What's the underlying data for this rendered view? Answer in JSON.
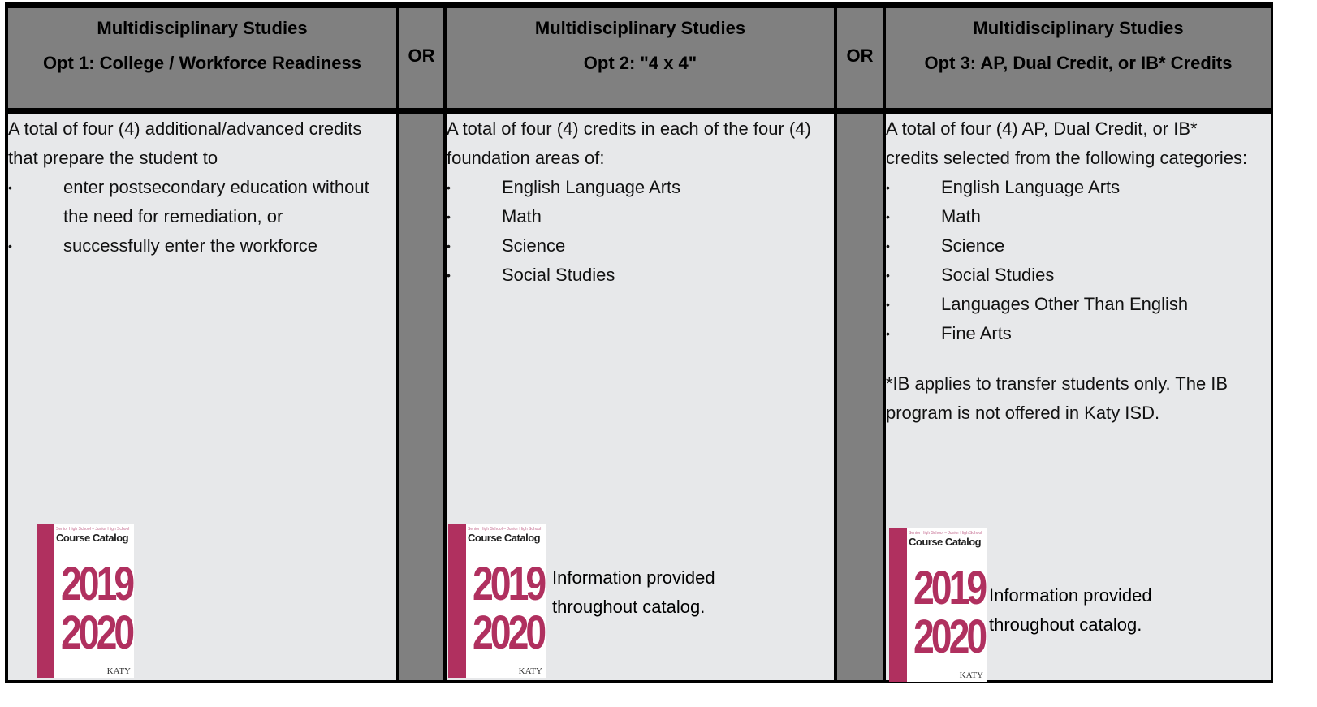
{
  "columns": [
    {
      "header": [
        "Multidisciplinary Studies",
        "Opt 1: College / Workforce Readiness"
      ],
      "intro": "A total of four (4) additional/advanced credits that prepare the student to",
      "bullets": [
        "enter postsecondary education without the need for remediation, or",
        "successfully enter the workforce"
      ],
      "catalog": {
        "school": "Senior High School – Junior High School",
        "title": "Course Catalog",
        "year1": "2019",
        "year2": "2020",
        "brand": "KATY"
      }
    },
    {
      "header": [
        "Multidisciplinary Studies",
        "Opt 2: \"4 x 4\""
      ],
      "intro": "A total of four (4) credits in each of the four (4) foundation areas of:",
      "bullets": [
        "English Language Arts",
        "Math",
        "Science",
        "Social Studies"
      ],
      "catalog": {
        "school": "Senior High School – Junior High School",
        "title": "Course Catalog",
        "year1": "2019",
        "year2": "2020",
        "brand": "KATY"
      },
      "caption": "Information provided throughout catalog."
    },
    {
      "header": [
        "Multidisciplinary Studies",
        "Opt 3: AP, Dual Credit, or IB* Credits"
      ],
      "intro": "A total of four (4) AP, Dual Credit, or IB* credits selected from the following categories:",
      "bullets": [
        "English Language Arts",
        "Math",
        "Science",
        "Social Studies",
        "Languages Other Than English",
        "Fine Arts"
      ],
      "note": "*IB applies to transfer students only. The IB program is not offered in Katy ISD.",
      "catalog": {
        "school": "Senior High School – Junior High School",
        "title": "Course Catalog",
        "year1": "2019",
        "year2": "2020",
        "brand": "KATY"
      },
      "caption": "Information provided throughout catalog."
    }
  ],
  "separators": [
    "OR",
    "OR"
  ]
}
